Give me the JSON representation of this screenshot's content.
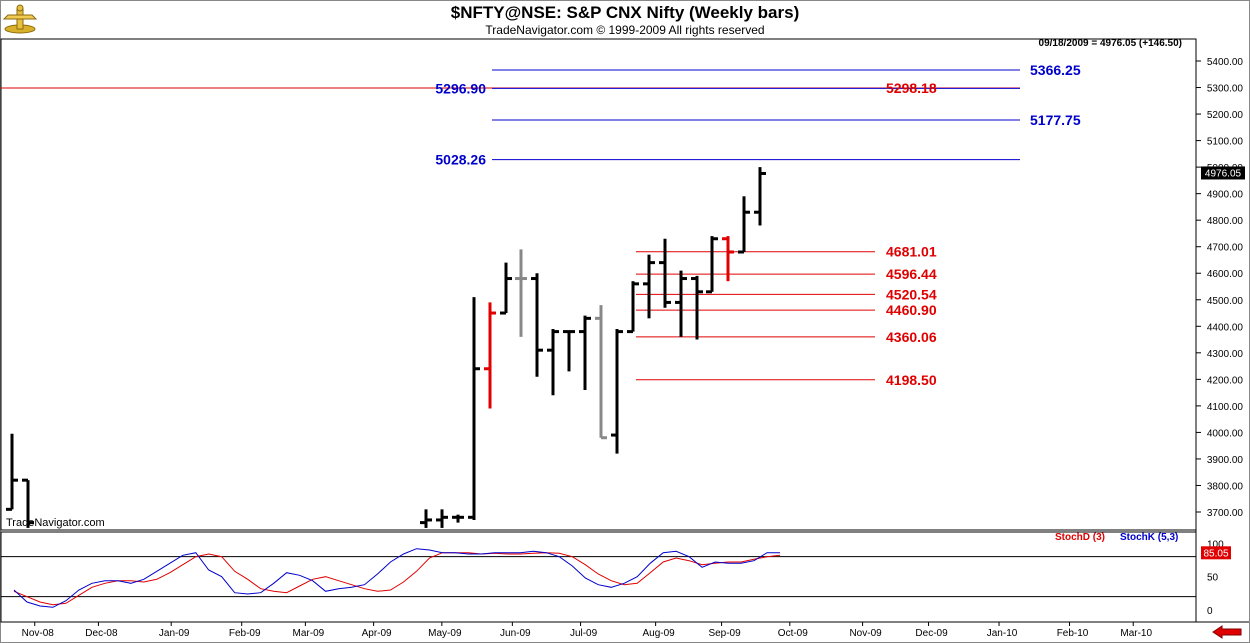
{
  "header": {
    "title": "$NFTY@NSE:  S&P CNX Nifty  (Weekly bars)",
    "copyright": "TradeNavigator.com © 1999-2009 All rights reserved",
    "watermark": "TradeNavigator.com",
    "quote_readout": "09/18/2009 = 4976.05 (+146.50)",
    "logo_icon": "trade-navigator-logo-icon"
  },
  "colors": {
    "bar_black": "#000000",
    "bar_gray": "#888888",
    "bar_red": "#e00000",
    "level_blue": "#0000cc",
    "level_red": "#e00000",
    "stoch_d": "#e00000",
    "stoch_k": "#0000cc",
    "grid": "#000000"
  },
  "chart_data": [
    {
      "type": "ohlc",
      "ylim": [
        3660,
        5460
      ],
      "y_ticks": [
        "3700.00",
        "3800.00",
        "3900.00",
        "4000.00",
        "4100.00",
        "4200.00",
        "4300.00",
        "4400.00",
        "4500.00",
        "4600.00",
        "4700.00",
        "4800.00",
        "4900.00",
        "5000.00",
        "5100.00",
        "5200.00",
        "5300.00",
        "5400.00"
      ],
      "x_ticks": [
        "Nov-08",
        "Dec-08",
        "Jan-09",
        "Feb-09",
        "Mar-09",
        "Apr-09",
        "May-09",
        "Jun-09",
        "Jul-09",
        "Aug-09",
        "Sep-09",
        "Oct-09",
        "Nov-09",
        "Dec-09",
        "Jan-10",
        "Feb-10",
        "Mar-10"
      ],
      "last_price_label": "4976.05",
      "bars": [
        {
          "date": "2008-10-24",
          "open": 3710,
          "high": 3995,
          "low": 3710,
          "close": 3820,
          "color": "black"
        },
        {
          "date": "2008-10-31",
          "open": 3820,
          "high": 3820,
          "low": 3640,
          "close": 3660,
          "color": "black"
        },
        {
          "date": "2009-04-24",
          "open": 3660,
          "high": 3710,
          "low": 3640,
          "close": 3670,
          "color": "black"
        },
        {
          "date": "2009-05-01",
          "open": 3670,
          "high": 3710,
          "low": 3640,
          "close": 3680,
          "color": "black"
        },
        {
          "date": "2009-05-08",
          "open": 3680,
          "high": 3690,
          "low": 3660,
          "close": 3680,
          "color": "black"
        },
        {
          "date": "2009-05-15",
          "open": 3680,
          "high": 4510,
          "low": 3670,
          "close": 4240,
          "color": "black"
        },
        {
          "date": "2009-05-22",
          "open": 4240,
          "high": 4490,
          "low": 4090,
          "close": 4450,
          "color": "red"
        },
        {
          "date": "2009-05-29",
          "open": 4450,
          "high": 4640,
          "low": 4450,
          "close": 4580,
          "color": "black"
        },
        {
          "date": "2009-06-05",
          "open": 4580,
          "high": 4690,
          "low": 4360,
          "close": 4580,
          "color": "gray"
        },
        {
          "date": "2009-06-12",
          "open": 4580,
          "high": 4600,
          "low": 4210,
          "close": 4310,
          "color": "black"
        },
        {
          "date": "2009-06-19",
          "open": 4310,
          "high": 4390,
          "low": 4140,
          "close": 4380,
          "color": "black"
        },
        {
          "date": "2009-06-26",
          "open": 4380,
          "high": 4380,
          "low": 4230,
          "close": 4380,
          "color": "black"
        },
        {
          "date": "2009-07-03",
          "open": 4380,
          "high": 4440,
          "low": 4160,
          "close": 4430,
          "color": "black"
        },
        {
          "date": "2009-07-10",
          "open": 4430,
          "high": 4480,
          "low": 3980,
          "close": 3980,
          "color": "gray"
        },
        {
          "date": "2009-07-17",
          "open": 3990,
          "high": 4390,
          "low": 3920,
          "close": 4380,
          "color": "black"
        },
        {
          "date": "2009-07-24",
          "open": 4380,
          "high": 4570,
          "low": 4380,
          "close": 4560,
          "color": "black"
        },
        {
          "date": "2009-07-31",
          "open": 4560,
          "high": 4670,
          "low": 4430,
          "close": 4640,
          "color": "black"
        },
        {
          "date": "2009-08-07",
          "open": 4640,
          "high": 4730,
          "low": 4470,
          "close": 4490,
          "color": "black"
        },
        {
          "date": "2009-08-14",
          "open": 4490,
          "high": 4610,
          "low": 4360,
          "close": 4580,
          "color": "black"
        },
        {
          "date": "2009-08-21",
          "open": 4580,
          "high": 4590,
          "low": 4350,
          "close": 4530,
          "color": "black"
        },
        {
          "date": "2009-08-28",
          "open": 4530,
          "high": 4740,
          "low": 4530,
          "close": 4730,
          "color": "black"
        },
        {
          "date": "2009-09-04",
          "open": 4730,
          "high": 4740,
          "low": 4570,
          "close": 4680,
          "color": "red"
        },
        {
          "date": "2009-09-11",
          "open": 4680,
          "high": 4890,
          "low": 4680,
          "close": 4830,
          "color": "black"
        },
        {
          "date": "2009-09-18",
          "open": 4830,
          "high": 5000,
          "low": 4780,
          "close": 4976.05,
          "color": "black"
        }
      ],
      "levels_blue": [
        {
          "label": "5366.25",
          "value": 5366.25
        },
        {
          "label": "5177.75",
          "value": 5177.75
        },
        {
          "label": "5028.26",
          "value": 5028.26
        }
      ],
      "level_blue_296": {
        "label": "5296.90",
        "value": 5296.9
      },
      "level_red_298": {
        "label": "5298.18",
        "value": 5298.18
      },
      "levels_red": [
        {
          "label": "4681.01",
          "value": 4681.01
        },
        {
          "label": "4596.44",
          "value": 4596.44
        },
        {
          "label": "4520.54",
          "value": 4520.54
        },
        {
          "label": "4460.90",
          "value": 4460.9
        },
        {
          "label": "4360.06",
          "value": 4360.06
        },
        {
          "label": "4198.50",
          "value": 4198.5
        }
      ]
    },
    {
      "type": "line",
      "ylim": [
        -12,
        114
      ],
      "y_ticks": [
        "100",
        "50",
        "0"
      ],
      "reference_lines": [
        80,
        20
      ],
      "value_label": "85.05",
      "series": [
        {
          "name": "StochD (3)",
          "color": "#e00000",
          "values": [
            28,
            20,
            12,
            8,
            10,
            22,
            34,
            40,
            44,
            44,
            42,
            46,
            56,
            68,
            80,
            84,
            80,
            58,
            46,
            32,
            28,
            26,
            36,
            46,
            50,
            44,
            38,
            32,
            28,
            30,
            42,
            58,
            78,
            86,
            86,
            86,
            84,
            85,
            84,
            84,
            85,
            86,
            85,
            80,
            68,
            54,
            44,
            38,
            40,
            56,
            72,
            78,
            74,
            68,
            70,
            72,
            72,
            76,
            80,
            82
          ]
        },
        {
          "name": "StochK (5,3)",
          "color": "#0000cc",
          "values": [
            30,
            12,
            6,
            4,
            14,
            30,
            40,
            44,
            44,
            40,
            46,
            58,
            70,
            82,
            86,
            60,
            50,
            26,
            24,
            26,
            40,
            56,
            52,
            44,
            28,
            32,
            34,
            38,
            54,
            72,
            84,
            92,
            90,
            86,
            86,
            84,
            84,
            86,
            86,
            86,
            88,
            86,
            80,
            66,
            48,
            38,
            34,
            40,
            50,
            70,
            86,
            88,
            80,
            64,
            72,
            70,
            70,
            74,
            86,
            86
          ]
        }
      ]
    }
  ]
}
